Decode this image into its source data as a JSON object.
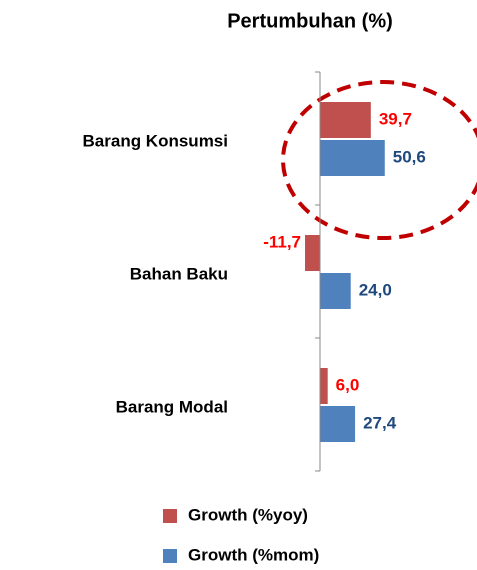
{
  "chart_data": {
    "type": "barh",
    "title": "Pertumbuhan (%)",
    "categories": [
      "Barang Konsumsi",
      "Bahan Baku",
      "Barang Modal"
    ],
    "series": [
      {
        "name": "Growth (%yoy)",
        "color": "#c0504d",
        "label_color": "#ff0000",
        "values": [
          39.7,
          -11.7,
          6.0
        ],
        "value_labels": [
          "39,7",
          "-11,7",
          "6,0"
        ]
      },
      {
        "name": "Growth (%mom)",
        "color": "#4f81bd",
        "label_color": "#1f497d",
        "values": [
          50.6,
          24.0,
          27.4
        ],
        "value_labels": [
          "50,6",
          "24,0",
          "27,4"
        ]
      }
    ],
    "xlim": [
      -20,
      60
    ]
  }
}
